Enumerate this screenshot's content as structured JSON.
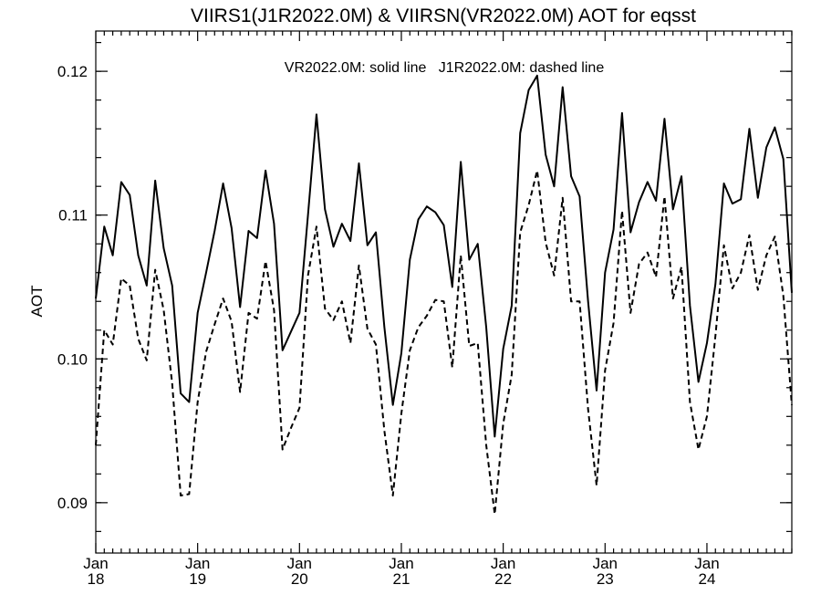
{
  "chart_data": {
    "type": "line",
    "title": "VIIRS1(J1R2022.0M) & VIIRSN(VR2022.0M)  AOT for eqsst",
    "annotation": "VR2022.0M: solid line   J1R2022.0M: dashed line",
    "ylabel": "AOT",
    "xlabel": "",
    "xlim": [
      0,
      82
    ],
    "ylim": [
      0.0865,
      0.1228
    ],
    "y_ticks": [
      {
        "value": 0.09,
        "label": "0.09"
      },
      {
        "value": 0.1,
        "label": "0.10"
      },
      {
        "value": 0.11,
        "label": "0.11"
      },
      {
        "value": 0.12,
        "label": "0.12"
      }
    ],
    "x_ticks": [
      {
        "value": 0,
        "month": "Jan",
        "year": "18"
      },
      {
        "value": 12,
        "month": "Jan",
        "year": "19"
      },
      {
        "value": 24,
        "month": "Jan",
        "year": "20"
      },
      {
        "value": 36,
        "month": "Jan",
        "year": "21"
      },
      {
        "value": 48,
        "month": "Jan",
        "year": "22"
      },
      {
        "value": 60,
        "month": "Jan",
        "year": "23"
      },
      {
        "value": 72,
        "month": "Jan",
        "year": "24"
      }
    ],
    "x_unit_note": "months since Jan 2018",
    "series": [
      {
        "name": "VR2022.0M",
        "style": "solid",
        "color": "#000000",
        "values": [
          0.1042,
          0.1092,
          0.1072,
          0.1123,
          0.1114,
          0.1072,
          0.1051,
          0.1124,
          0.1077,
          0.1051,
          0.0976,
          0.097,
          0.1032,
          0.106,
          0.1089,
          0.1122,
          0.1091,
          0.1036,
          0.1089,
          0.1084,
          0.1131,
          0.1094,
          0.1006,
          0.1019,
          0.1032,
          0.11,
          0.117,
          0.1104,
          0.1078,
          0.1094,
          0.1082,
          0.1136,
          0.1079,
          0.1088,
          0.1022,
          0.0968,
          0.1004,
          0.1069,
          0.1097,
          0.1106,
          0.1102,
          0.1093,
          0.105,
          0.1137,
          0.1069,
          0.108,
          0.1022,
          0.0946,
          0.1007,
          0.1037,
          0.1157,
          0.1187,
          0.1197,
          0.1142,
          0.112,
          0.1189,
          0.1127,
          0.1113,
          0.104,
          0.0978,
          0.106,
          0.109,
          0.1171,
          0.1088,
          0.1109,
          0.1123,
          0.111,
          0.1167,
          0.1104,
          0.1127,
          0.1037,
          0.0984,
          0.1011,
          0.1052,
          0.1122,
          0.1108,
          0.1111,
          0.116,
          0.1112,
          0.1147,
          0.1161,
          0.1139,
          0.1046
        ]
      },
      {
        "name": "J1R2022.0M",
        "style": "dashed",
        "color": "#000000",
        "values": [
          0.094,
          0.102,
          0.101,
          0.1056,
          0.1051,
          0.1014,
          0.0999,
          0.1062,
          0.1034,
          0.0983,
          0.0905,
          0.0906,
          0.097,
          0.1005,
          0.1024,
          0.1042,
          0.1026,
          0.0977,
          0.1032,
          0.1028,
          0.1068,
          0.1034,
          0.0937,
          0.0952,
          0.0966,
          0.1058,
          0.1092,
          0.1035,
          0.1027,
          0.104,
          0.1011,
          0.1065,
          0.1021,
          0.101,
          0.095,
          0.0905,
          0.0962,
          0.1006,
          0.1022,
          0.103,
          0.1041,
          0.104,
          0.0994,
          0.1072,
          0.1009,
          0.1011,
          0.094,
          0.0892,
          0.0955,
          0.0989,
          0.1088,
          0.1107,
          0.1131,
          0.1081,
          0.1058,
          0.1112,
          0.104,
          0.104,
          0.0965,
          0.0912,
          0.0992,
          0.1025,
          0.1103,
          0.1032,
          0.1066,
          0.1074,
          0.1057,
          0.1113,
          0.1042,
          0.1064,
          0.097,
          0.0937,
          0.096,
          0.1016,
          0.1079,
          0.1049,
          0.106,
          0.1086,
          0.1048,
          0.1072,
          0.1085,
          0.1044,
          0.0968
        ]
      }
    ]
  }
}
